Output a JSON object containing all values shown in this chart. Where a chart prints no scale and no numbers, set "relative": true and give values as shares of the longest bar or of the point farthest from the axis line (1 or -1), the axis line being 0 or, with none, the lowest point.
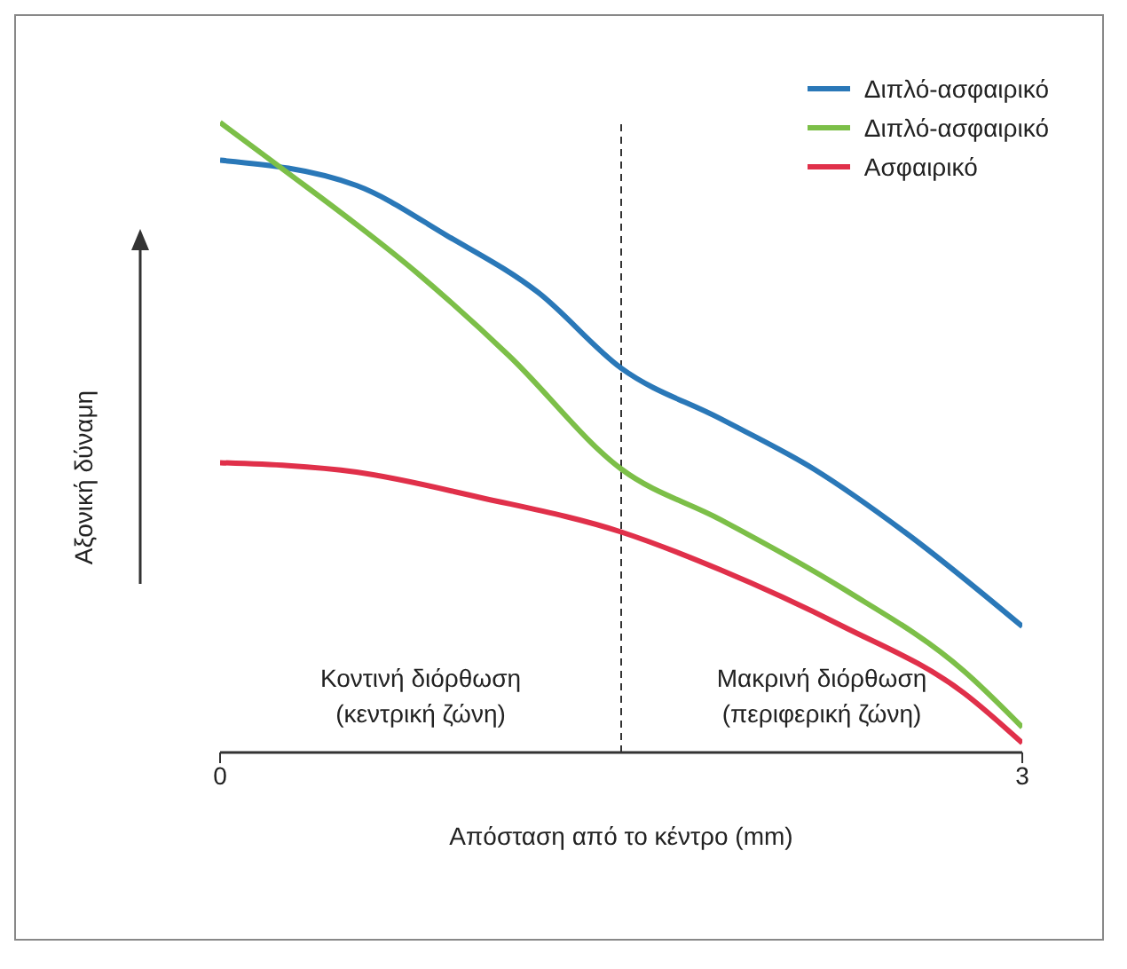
{
  "chart_data": {
    "type": "line",
    "relative": true,
    "xlabel": "Απόσταση από το κέντρο (mm)",
    "ylabel": "Αξονική δύναμη",
    "xlim": [
      0,
      3
    ],
    "xticks": [
      0,
      3
    ],
    "legend": "top right",
    "grid": false,
    "marker": "none",
    "line_style": "solid",
    "series": [
      {
        "name": "Διπλό-ασφαιρικό",
        "color": "#2a78b8",
        "x": [
          0,
          0.51,
          0.85,
          1.19,
          1.5,
          1.87,
          2.22,
          2.56,
          3
        ],
        "values": [
          0.94,
          0.9,
          0.82,
          0.73,
          0.61,
          0.53,
          0.45,
          0.35,
          0.2
        ]
      },
      {
        "name": "Διπλό-ασφαιρικό",
        "color": "#7cbf48",
        "x": [
          0,
          0.19,
          0.74,
          1.08,
          1.5,
          1.87,
          2.33,
          2.78,
          3
        ],
        "values": [
          1,
          0.94,
          0.76,
          0.63,
          0.45,
          0.37,
          0.26,
          0.13,
          0.04
        ]
      },
      {
        "name": "Ασφαιρικό",
        "color": "#e0304a",
        "x": [
          0,
          0.51,
          0.97,
          1.5,
          1.87,
          2.33,
          2.78,
          3
        ],
        "values": [
          0.46,
          0.445,
          0.405,
          0.35,
          0.29,
          0.2,
          0.095,
          0.015
        ]
      }
    ],
    "ref_lines": [
      {
        "axis": "x",
        "value": 1.5,
        "line_style": "dashed",
        "color": "#333333"
      }
    ],
    "annotations": [
      "Κοντινή διόρθωση\n(κεντρική ζώνη)",
      "Μακρινή διόρθωση\n(περιφερική ζώνη)"
    ]
  }
}
